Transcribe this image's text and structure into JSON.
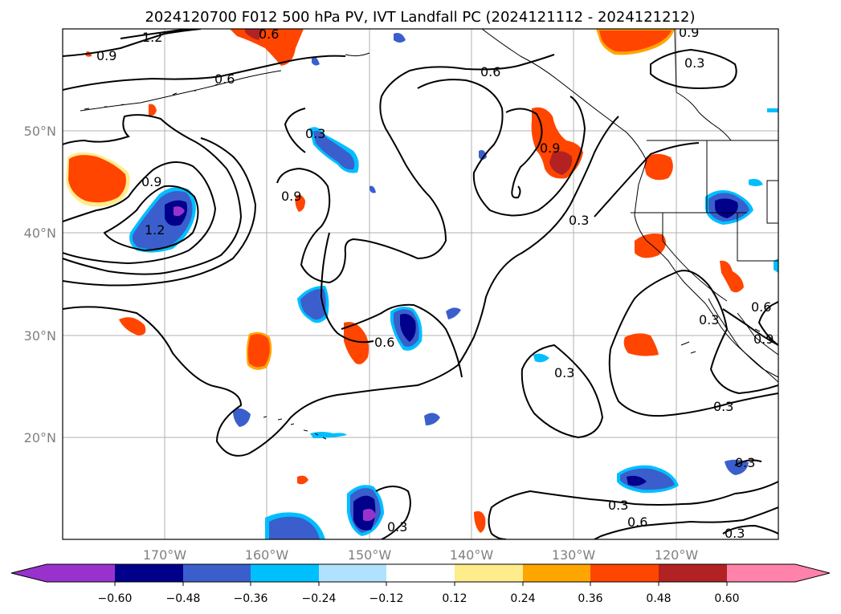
{
  "title": "2024120700 F012 500 hPa PV, IVT Landfall PC (2024121112 - 2024121212)",
  "map": {
    "lon_labels": [
      "170°W",
      "160°W",
      "150°W",
      "140°W",
      "130°W",
      "120°W"
    ],
    "lat_labels": [
      "50°N",
      "40°N",
      "30°N",
      "20°N"
    ],
    "grid": true,
    "contour_labels": [
      "1.2",
      "0.9",
      "0.6",
      "0.6",
      "0.3",
      "0.9",
      "1.2",
      "0.9",
      "0.9",
      "0.3",
      "0.6",
      "0.9",
      "0.3",
      "0.3",
      "0.6",
      "0.3",
      "0.9",
      "0.3",
      "0.3",
      "0.3",
      "0.6",
      "0.3",
      "0.3",
      "0.6"
    ]
  },
  "colorbar": {
    "colors": {
      "under": "#9932cc",
      "c1": "#00008b",
      "c2": "#3a5fcd",
      "c3": "#00bfff",
      "c4": "#b0e2ff",
      "c5": "#ffffff",
      "c6": "#ffec8b",
      "c7": "#ffa500",
      "c8": "#ff4500",
      "c9": "#b22222",
      "over": "#ff82ab"
    },
    "tick_labels": [
      "−0.60",
      "−0.48",
      "−0.36",
      "−0.24",
      "−0.12",
      "0.12",
      "0.24",
      "0.36",
      "0.48",
      "0.60"
    ]
  }
}
